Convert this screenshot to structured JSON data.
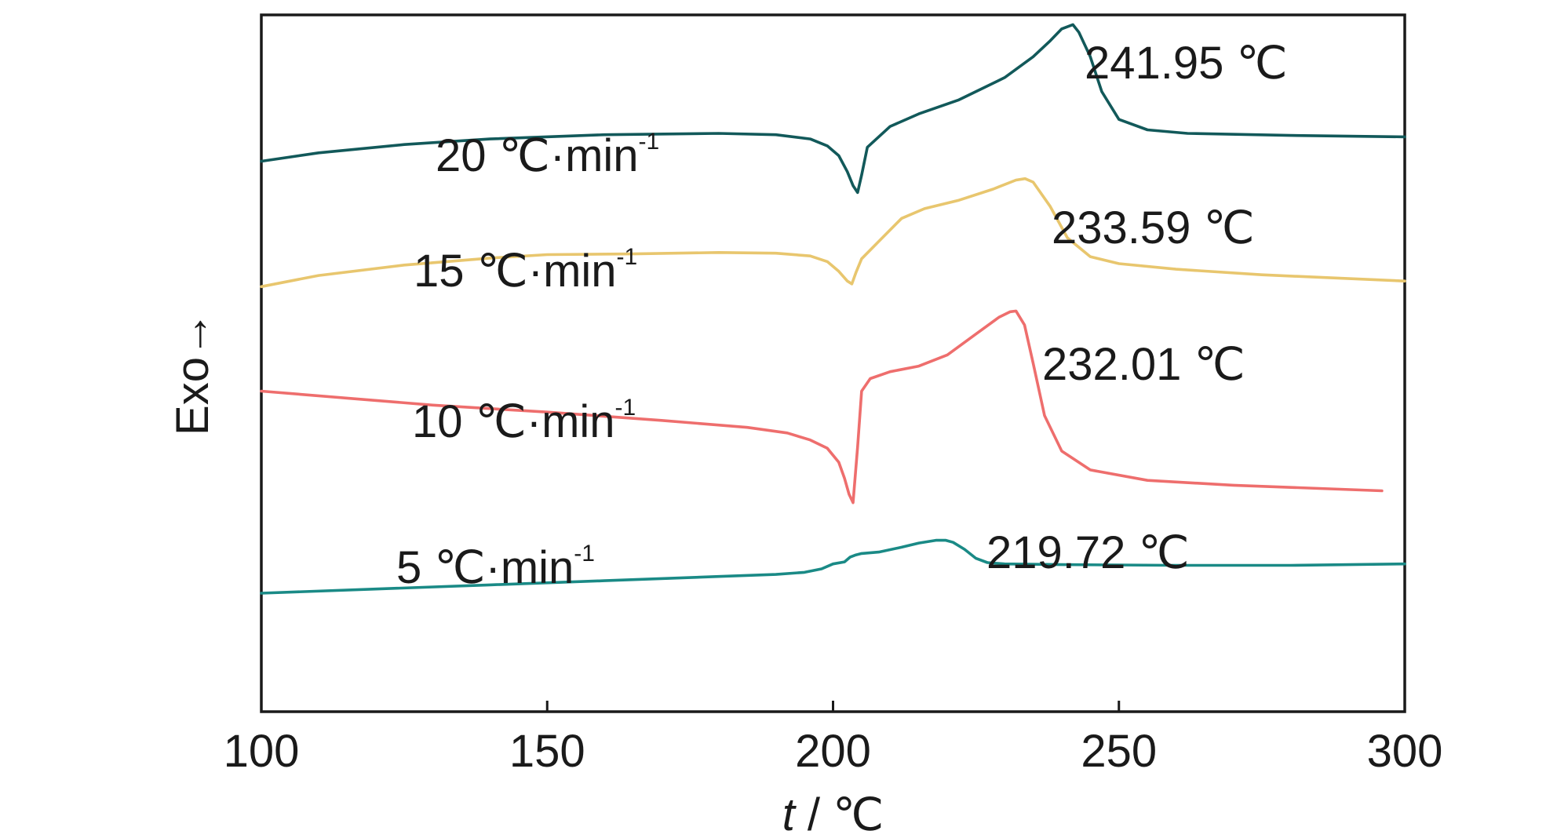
{
  "chart_data": {
    "type": "line",
    "title": "",
    "xlabel_italic": "t",
    "xlabel_rest": " / ℃",
    "ylabel": "Exo→",
    "xlim": [
      100,
      300
    ],
    "xticks": [
      "100",
      "150",
      "200",
      "250",
      "300"
    ],
    "yticks_shown": false,
    "grid": false,
    "legend": "none (inline labels next to curves)",
    "series": [
      {
        "name": "20 ℃·min-1",
        "label_main": "20  ℃·min",
        "label_sup": "-1",
        "color": "#12595a",
        "peak_label": "241.95 ℃",
        "peak_x": 241.95,
        "x": [
          100,
          110,
          125,
          140,
          160,
          180,
          190,
          196,
          199,
          201,
          202.5,
          203.5,
          204.3,
          205,
          206,
          210,
          215,
          222,
          230,
          235,
          238,
          240,
          241.95,
          243,
          245,
          247,
          250,
          255,
          262,
          280,
          300
        ],
        "y": [
          19.0,
          20.2,
          21.4,
          22.2,
          22.8,
          23.0,
          22.8,
          22.2,
          21.2,
          19.8,
          17.5,
          15.5,
          14.5,
          17.0,
          21.0,
          24.0,
          25.8,
          27.8,
          31.0,
          34.0,
          36.3,
          38.0,
          38.6,
          37.5,
          34.0,
          29.0,
          25.0,
          23.5,
          23.0,
          22.7,
          22.5
        ]
      },
      {
        "name": "15 ℃·min-1",
        "label_main": "15  ℃·min",
        "label_sup": "-1",
        "color": "#e8c66e",
        "peak_label": "233.59 ℃",
        "peak_x": 233.59,
        "x": [
          100,
          110,
          125,
          140,
          150,
          165,
          180,
          190,
          196,
          199,
          201,
          202.5,
          203.3,
          204,
          205,
          208,
          212,
          216,
          222,
          228,
          232,
          233.59,
          235,
          238,
          241,
          245,
          250,
          260,
          275,
          300
        ],
        "y": [
          1.0,
          2.6,
          4.1,
          5.1,
          5.6,
          5.7,
          5.9,
          5.8,
          5.4,
          4.6,
          3.2,
          1.8,
          1.4,
          3.0,
          5.0,
          7.5,
          10.8,
          12.2,
          13.4,
          15.0,
          16.3,
          16.5,
          16.0,
          12.5,
          8.0,
          5.3,
          4.3,
          3.5,
          2.7,
          1.8
        ]
      },
      {
        "name": "10 ℃·min-1",
        "label_main": "10  ℃·min",
        "label_sup": "-1",
        "color": "#ee6e6d",
        "peak_label": "232.01 ℃",
        "peak_x": 232.01,
        "x": [
          100,
          115,
          130,
          150,
          170,
          185,
          192,
          196,
          199,
          201,
          202,
          202.8,
          203.5,
          204.3,
          205,
          206.5,
          210,
          215,
          220,
          225,
          229,
          231,
          232.01,
          233.5,
          235,
          237,
          240,
          245,
          255,
          270,
          296
        ],
        "y": [
          -14.0,
          -15.0,
          -16.0,
          -17.0,
          -18.2,
          -19.2,
          -20.0,
          -21.0,
          -22.2,
          -24.2,
          -26.5,
          -28.8,
          -30.0,
          -22.0,
          -14.0,
          -12.2,
          -11.2,
          -10.4,
          -8.8,
          -5.8,
          -3.4,
          -2.6,
          -2.5,
          -4.5,
          -10.0,
          -17.5,
          -22.6,
          -25.3,
          -26.8,
          -27.5,
          -28.3
        ]
      },
      {
        "name": "5 ℃·min-1",
        "label_main": "5  ℃·min",
        "label_sup": "-1",
        "color": "#1a8a86",
        "peak_label": "219.72 ℃",
        "peak_x": 219.72,
        "x": [
          100,
          120,
          140,
          160,
          180,
          190,
          195,
          198,
          200,
          202,
          203,
          204,
          205,
          208,
          212,
          215,
          218,
          219.72,
          221,
          223,
          225,
          227,
          230,
          240,
          260,
          280,
          300
        ],
        "y": [
          -43.0,
          -42.4,
          -41.8,
          -41.2,
          -40.6,
          -40.3,
          -40.0,
          -39.5,
          -38.8,
          -38.5,
          -37.8,
          -37.5,
          -37.3,
          -37.1,
          -36.4,
          -35.8,
          -35.4,
          -35.4,
          -35.7,
          -36.7,
          -38.0,
          -38.6,
          -38.8,
          -38.9,
          -39.0,
          -39.0,
          -38.8
        ]
      }
    ]
  }
}
